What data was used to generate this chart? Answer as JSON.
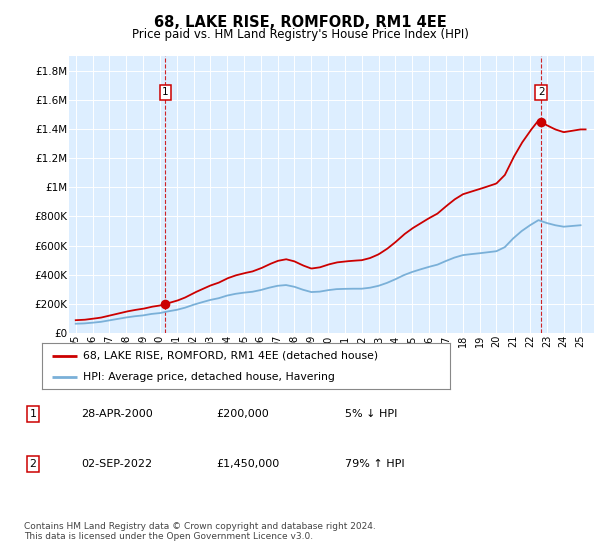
{
  "title": "68, LAKE RISE, ROMFORD, RM1 4EE",
  "subtitle": "Price paid vs. HM Land Registry's House Price Index (HPI)",
  "ylim": [
    0,
    1900000
  ],
  "yticks": [
    0,
    200000,
    400000,
    600000,
    800000,
    1000000,
    1200000,
    1400000,
    1600000,
    1800000
  ],
  "ytick_labels": [
    "£0",
    "£200K",
    "£400K",
    "£600K",
    "£800K",
    "£1M",
    "£1.2M",
    "£1.4M",
    "£1.6M",
    "£1.8M"
  ],
  "xmin": 1994.6,
  "xmax": 2025.8,
  "bg_color": "#ddeeff",
  "line_color_red": "#cc0000",
  "line_color_blue": "#7ab0d8",
  "point1_x": 2000.33,
  "point1_y": 200000,
  "point2_x": 2022.67,
  "point2_y": 1450000,
  "legend_line1": "68, LAKE RISE, ROMFORD, RM1 4EE (detached house)",
  "legend_line2": "HPI: Average price, detached house, Havering",
  "table_rows": [
    [
      "1",
      "28-APR-2000",
      "£200,000",
      "5% ↓ HPI"
    ],
    [
      "2",
      "02-SEP-2022",
      "£1,450,000",
      "79% ↑ HPI"
    ]
  ],
  "footer": "Contains HM Land Registry data © Crown copyright and database right 2024.\nThis data is licensed under the Open Government Licence v3.0.",
  "hpi_years": [
    1995.0,
    1995.5,
    1996.0,
    1996.5,
    1997.0,
    1997.5,
    1998.0,
    1998.5,
    1999.0,
    1999.5,
    2000.0,
    2000.5,
    2001.0,
    2001.5,
    2002.0,
    2002.5,
    2003.0,
    2003.5,
    2004.0,
    2004.5,
    2005.0,
    2005.5,
    2006.0,
    2006.5,
    2007.0,
    2007.5,
    2008.0,
    2008.5,
    2009.0,
    2009.5,
    2010.0,
    2010.5,
    2011.0,
    2011.5,
    2012.0,
    2012.5,
    2013.0,
    2013.5,
    2014.0,
    2014.5,
    2015.0,
    2015.5,
    2016.0,
    2016.5,
    2017.0,
    2017.5,
    2018.0,
    2018.5,
    2019.0,
    2019.5,
    2020.0,
    2020.5,
    2021.0,
    2021.5,
    2022.0,
    2022.5,
    2023.0,
    2023.5,
    2024.0,
    2024.5,
    2025.0
  ],
  "hpi_values": [
    65000,
    67000,
    72000,
    78000,
    88000,
    98000,
    108000,
    116000,
    122000,
    132000,
    138000,
    150000,
    160000,
    175000,
    195000,
    212000,
    228000,
    240000,
    258000,
    270000,
    278000,
    284000,
    296000,
    312000,
    325000,
    330000,
    318000,
    298000,
    282000,
    285000,
    295000,
    302000,
    304000,
    305000,
    305000,
    312000,
    325000,
    345000,
    370000,
    398000,
    420000,
    438000,
    455000,
    470000,
    495000,
    518000,
    535000,
    542000,
    548000,
    555000,
    562000,
    590000,
    650000,
    700000,
    740000,
    775000,
    755000,
    740000,
    730000,
    735000,
    740000
  ]
}
